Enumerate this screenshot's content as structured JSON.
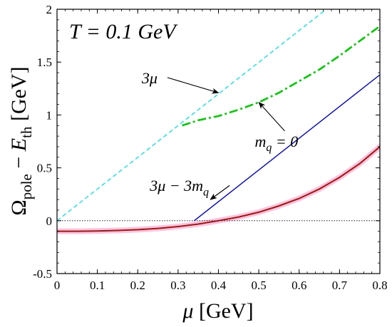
{
  "chart_data": {
    "type": "line",
    "title": "",
    "annotation_main": "T = 0.1 GeV",
    "xlabel": "μ [GeV]",
    "ylabel": "Ω_pole − E_th [GeV]",
    "xlim": [
      0,
      0.8
    ],
    "ylim": [
      -0.5,
      2
    ],
    "xticks": [
      "0",
      "0.1",
      "0.2",
      "0.3",
      "0.4",
      "0.5",
      "0.6",
      "0.7",
      "0.8"
    ],
    "yticks": [
      "-0.5",
      "0",
      "0.5",
      "1",
      "1.5",
      "2"
    ],
    "grid": false,
    "series": [
      {
        "name": "3μ",
        "color": "#00e5ee",
        "style": "dashed",
        "x": [
          0,
          0.667
        ],
        "y": [
          0,
          2.0
        ]
      },
      {
        "name": "m_q = 0",
        "color": "#00cc00",
        "style": "dashdot",
        "x": [
          0.31,
          0.35,
          0.4,
          0.45,
          0.5,
          0.55,
          0.6,
          0.65,
          0.7,
          0.75,
          0.8
        ],
        "y": [
          0.9,
          0.95,
          0.99,
          1.05,
          1.12,
          1.21,
          1.32,
          1.43,
          1.56,
          1.7,
          1.84
        ]
      },
      {
        "name": "3μ − 3m_q",
        "color": "#0000cc",
        "style": "solid",
        "x": [
          0.34,
          0.8
        ],
        "y": [
          0.0,
          1.38
        ]
      },
      {
        "name": "Ω_pole − E_th",
        "color": "#cc0000",
        "style": "solid",
        "x": [
          0,
          0.05,
          0.1,
          0.15,
          0.2,
          0.25,
          0.3,
          0.35,
          0.4,
          0.45,
          0.5,
          0.55,
          0.6,
          0.65,
          0.7,
          0.75,
          0.8
        ],
        "y": [
          -0.1,
          -0.1,
          -0.097,
          -0.092,
          -0.085,
          -0.073,
          -0.055,
          -0.032,
          0.0,
          0.035,
          0.08,
          0.14,
          0.21,
          0.3,
          0.41,
          0.54,
          0.7
        ]
      },
      {
        "name": "zero",
        "color": "#000000",
        "style": "dotted",
        "x": [
          0,
          0.8
        ],
        "y": [
          0,
          0
        ]
      }
    ],
    "annotations": [
      {
        "text": "3μ",
        "tx": 0.21,
        "ty": 1.3,
        "ax": 0.4,
        "ay": 1.21
      },
      {
        "text": "m_q = 0",
        "tx": 0.49,
        "ty": 0.7,
        "ax": 0.5,
        "ay": 1.12
      },
      {
        "text": "3μ − 3m_q",
        "tx": 0.23,
        "ty": 0.28,
        "ax": 0.38,
        "ay": 0.2
      }
    ]
  }
}
